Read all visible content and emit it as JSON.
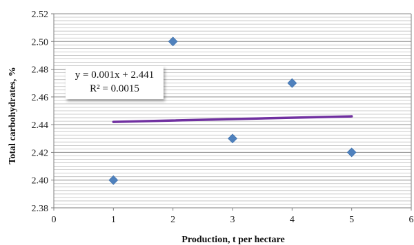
{
  "chart_data": {
    "type": "scatter",
    "title": "",
    "xlabel": "Production, t per hectare",
    "ylabel": "Total carbohydrates, %",
    "xlim": [
      0,
      6
    ],
    "ylim": [
      2.38,
      2.52
    ],
    "x_ticks": [
      "0",
      "1",
      "2",
      "3",
      "4",
      "5",
      "6"
    ],
    "y_ticks": [
      "2.38",
      "2.40",
      "2.42",
      "2.44",
      "2.46",
      "2.48",
      "2.50",
      "2.52"
    ],
    "grid": "horizontal",
    "series": [
      {
        "points": [
          {
            "x": 1,
            "y": 2.4
          },
          {
            "x": 2,
            "y": 2.5
          },
          {
            "x": 3,
            "y": 2.43
          },
          {
            "x": 4,
            "y": 2.47
          },
          {
            "x": 5,
            "y": 2.42
          }
        ],
        "marker": "diamond",
        "color": "#4f81bd"
      }
    ],
    "trendline": {
      "type": "linear",
      "slope": 0.001,
      "intercept": 2.441,
      "x_range": [
        1,
        5
      ],
      "color": "#7030a0",
      "equation": "y = 0.001x + 2.441",
      "r_squared": "R² = 0.0015"
    }
  }
}
